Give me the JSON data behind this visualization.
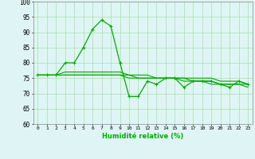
{
  "x": [
    0,
    1,
    2,
    3,
    4,
    5,
    6,
    7,
    8,
    9,
    10,
    11,
    12,
    13,
    14,
    15,
    16,
    17,
    18,
    19,
    20,
    21,
    22,
    23
  ],
  "line1": [
    76,
    76,
    76,
    80,
    80,
    85,
    91,
    94,
    92,
    80,
    69,
    69,
    74,
    73,
    75,
    75,
    72,
    74,
    74,
    74,
    73,
    72,
    74,
    73
  ],
  "line2": [
    76,
    76,
    76,
    77,
    77,
    77,
    77,
    77,
    77,
    77,
    76,
    76,
    76,
    75,
    75,
    75,
    75,
    75,
    75,
    75,
    74,
    74,
    74,
    73
  ],
  "line3": [
    76,
    76,
    76,
    76,
    76,
    76,
    76,
    76,
    76,
    76,
    76,
    75,
    75,
    75,
    75,
    75,
    75,
    74,
    74,
    74,
    73,
    73,
    73,
    73
  ],
  "line4": [
    76,
    76,
    76,
    76,
    76,
    76,
    76,
    76,
    76,
    76,
    75,
    75,
    75,
    75,
    75,
    75,
    74,
    74,
    74,
    73,
    73,
    73,
    73,
    72
  ],
  "bg_color": "#dff5f5",
  "grid_color": "#aaddaa",
  "line_color": "#00aa00",
  "xlabel": "Humidité relative (%)",
  "ylim": [
    60,
    100
  ],
  "xlim_left": -0.5,
  "xlim_right": 23.5,
  "yticks": [
    60,
    65,
    70,
    75,
    80,
    85,
    90,
    95,
    100
  ],
  "xticks": [
    0,
    1,
    2,
    3,
    4,
    5,
    6,
    7,
    8,
    9,
    10,
    11,
    12,
    13,
    14,
    15,
    16,
    17,
    18,
    19,
    20,
    21,
    22,
    23
  ]
}
